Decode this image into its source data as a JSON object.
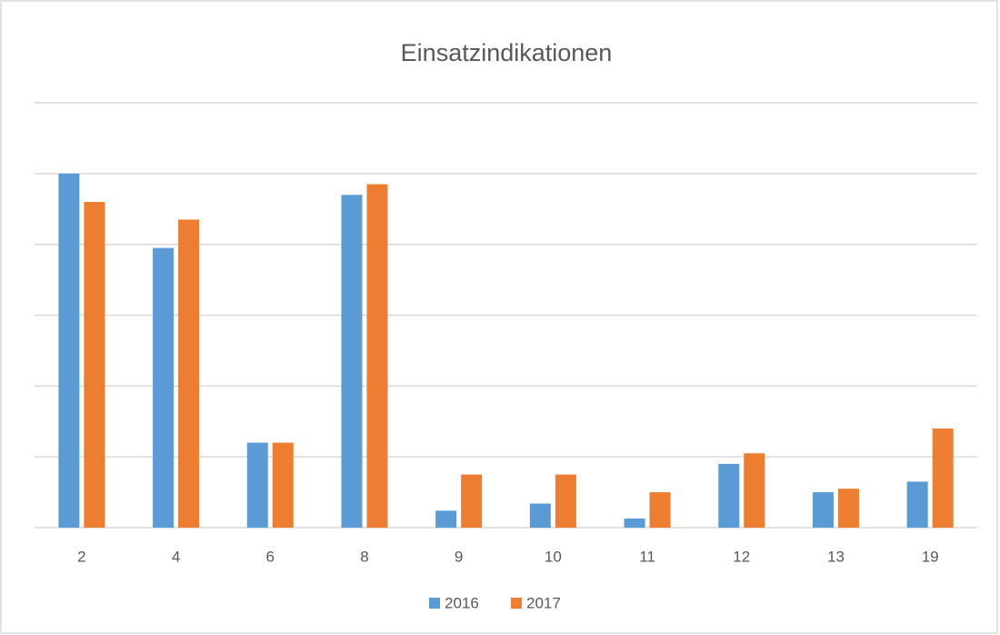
{
  "chart_data": {
    "type": "bar",
    "title": "Einsatzindikationen",
    "categories": [
      "2",
      "4",
      "6",
      "8",
      "9",
      "10",
      "11",
      "12",
      "13",
      "19"
    ],
    "series": [
      {
        "name": "2016",
        "color": "#5b9bd5",
        "values": [
          5.0,
          3.95,
          1.2,
          4.7,
          0.24,
          0.34,
          0.13,
          0.9,
          0.5,
          0.65
        ]
      },
      {
        "name": "2017",
        "color": "#ed7d31",
        "values": [
          4.6,
          4.35,
          1.2,
          4.85,
          0.75,
          0.75,
          0.5,
          1.05,
          0.55,
          1.4
        ]
      }
    ],
    "ylim": [
      0,
      6
    ],
    "yticks": [
      0,
      1,
      2,
      3,
      4,
      5,
      6
    ],
    "grid": true,
    "legend": "bottom"
  }
}
